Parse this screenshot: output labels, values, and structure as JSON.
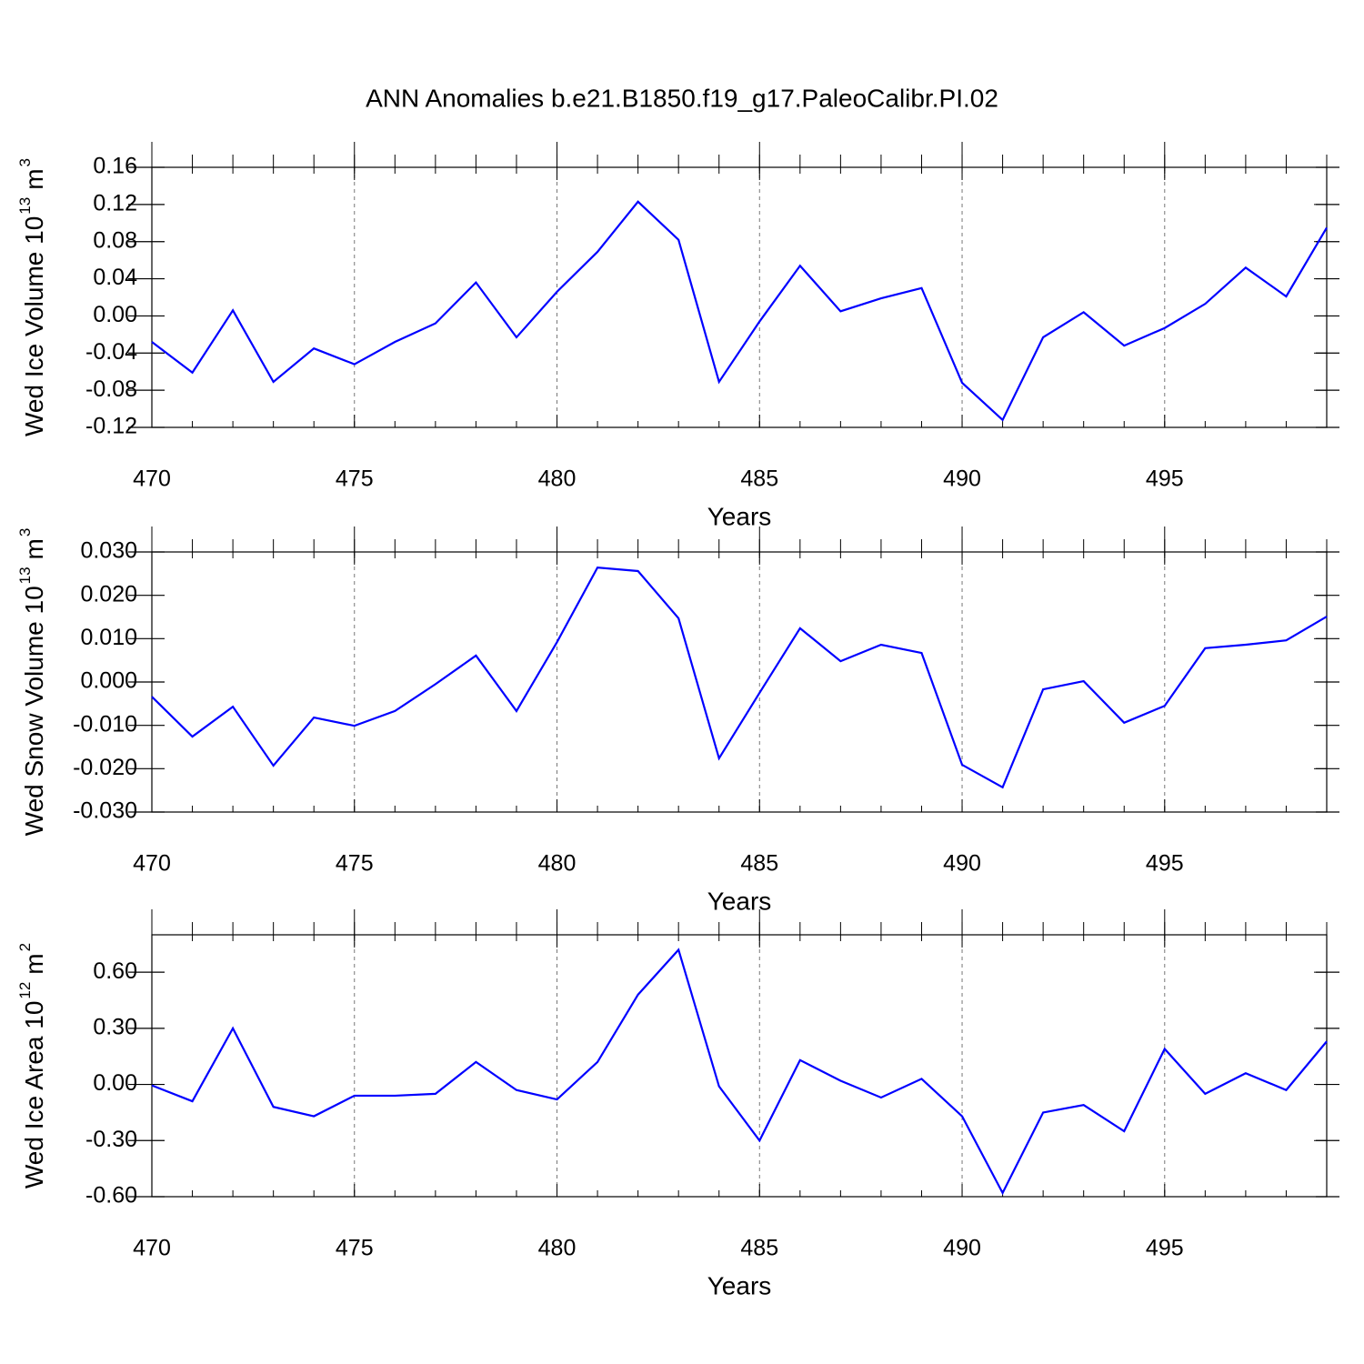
{
  "title": "ANN Anomalies b.e21.B1850.f19_g17.PaleoCalibr.PI.02",
  "chart_data": [
    {
      "type": "line",
      "xlabel": "Years",
      "ylabel": [
        "Wed Ice Volume 10",
        "13",
        "m",
        "3"
      ],
      "color": "#0000ff",
      "grid": true,
      "x": [
        470,
        471,
        472,
        473,
        474,
        475,
        476,
        477,
        478,
        479,
        480,
        481,
        482,
        483,
        484,
        485,
        486,
        487,
        488,
        489,
        490,
        491,
        492,
        493,
        494,
        495,
        496,
        497,
        498,
        499
      ],
      "values": [
        -0.028,
        -0.061,
        0.006,
        -0.071,
        -0.035,
        -0.052,
        -0.028,
        -0.008,
        0.036,
        -0.023,
        0.026,
        0.069,
        0.123,
        0.082,
        -0.071,
        -0.006,
        0.054,
        0.005,
        0.019,
        0.03,
        -0.072,
        -0.112,
        -0.023,
        0.004,
        -0.032,
        -0.013,
        0.013,
        0.052,
        0.021,
        0.095
      ],
      "xlim": [
        470,
        499
      ],
      "xticks": [
        470,
        475,
        480,
        485,
        490,
        495
      ],
      "ylim": [
        -0.12,
        0.16
      ],
      "yticks": [
        -0.12,
        -0.08,
        -0.04,
        {
          "value": 0,
          "label": "0.00"
        },
        0.04,
        0.08,
        0.12,
        0.16
      ]
    },
    {
      "type": "line",
      "xlabel": "Years",
      "ylabel": [
        "Wed Snow Volume 10",
        "13",
        "m",
        "3"
      ],
      "color": "#0000ff",
      "grid": true,
      "x": [
        470,
        471,
        472,
        473,
        474,
        475,
        476,
        477,
        478,
        479,
        480,
        481,
        482,
        483,
        484,
        485,
        486,
        487,
        488,
        489,
        490,
        491,
        492,
        493,
        494,
        495,
        496,
        497,
        498,
        499
      ],
      "values": [
        -0.0034,
        -0.0126,
        -0.0057,
        -0.0193,
        -0.0082,
        -0.0101,
        -0.0067,
        -0.0005,
        0.0061,
        -0.0067,
        0.0092,
        0.0264,
        0.0256,
        0.0147,
        -0.0176,
        -0.0025,
        0.0124,
        0.0048,
        0.0086,
        0.0067,
        -0.0191,
        -0.0243,
        -0.0017,
        0.0002,
        -0.0094,
        -0.0055,
        0.0078,
        0.0086,
        0.0096,
        0.0151
      ],
      "xlim": [
        470,
        499
      ],
      "xticks": [
        470,
        475,
        480,
        485,
        490,
        495
      ],
      "ylim": [
        -0.03,
        0.03
      ],
      "yticks": [
        {
          "value": -0.03,
          "label": "-0.030"
        },
        {
          "value": -0.02,
          "label": "-0.020"
        },
        {
          "value": -0.01,
          "label": "-0.010"
        },
        {
          "value": 0,
          "label": "0.000"
        },
        {
          "value": 0.01,
          "label": "0.010"
        },
        {
          "value": 0.02,
          "label": "0.020"
        },
        {
          "value": 0.03,
          "label": "0.030"
        }
      ]
    },
    {
      "type": "line",
      "xlabel": "Years",
      "ylabel": [
        "Wed Ice Area 10",
        "12",
        "m",
        "2"
      ],
      "color": "#0000ff",
      "grid": true,
      "x": [
        470,
        471,
        472,
        473,
        474,
        475,
        476,
        477,
        478,
        479,
        480,
        481,
        482,
        483,
        484,
        485,
        486,
        487,
        488,
        489,
        490,
        491,
        492,
        493,
        494,
        495,
        496,
        497,
        498,
        499
      ],
      "values": [
        -0.005,
        -0.09,
        0.3,
        -0.12,
        -0.17,
        -0.06,
        -0.06,
        -0.05,
        0.12,
        -0.03,
        -0.08,
        0.12,
        0.48,
        0.72,
        -0.01,
        -0.3,
        0.13,
        0.02,
        -0.07,
        0.03,
        -0.17,
        -0.58,
        -0.15,
        -0.11,
        -0.25,
        0.19,
        -0.05,
        0.06,
        -0.03,
        0.23
      ],
      "xlim": [
        470,
        499
      ],
      "xticks": [
        470,
        475,
        480,
        485,
        490,
        495
      ],
      "ylim": [
        -0.6,
        0.8
      ],
      "yticks": [
        {
          "value": -0.6,
          "label": "-0.60"
        },
        {
          "value": -0.3,
          "label": "-0.30"
        },
        {
          "value": 0,
          "label": "0.00"
        },
        {
          "value": 0.3,
          "label": "0.30"
        },
        {
          "value": 0.6,
          "label": "0.60"
        }
      ]
    }
  ]
}
